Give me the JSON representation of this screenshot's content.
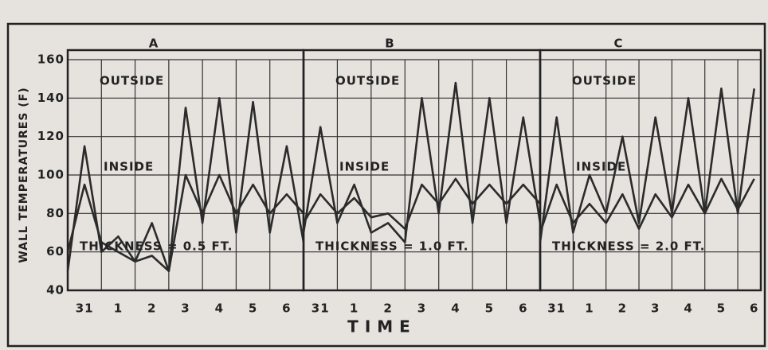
{
  "chart_data": [
    {
      "type": "line",
      "title": "A",
      "ylabel": "WALL TEMPERATURES (F)",
      "annotation": "THICKNESS = 0.5 FT.",
      "x": [
        -0.5,
        0,
        0.5,
        1,
        1.5,
        2,
        2.5,
        3,
        3.5,
        4,
        4.5,
        5,
        5.5,
        6,
        6.5
      ],
      "xlim": [
        -0.5,
        6.5
      ],
      "xticks": [
        {
          "value": 0,
          "label": "31"
        },
        1,
        2,
        3,
        4,
        5,
        6
      ],
      "ylim": [
        40,
        160
      ],
      "yticks": [
        40,
        60,
        80,
        100,
        120,
        140,
        160
      ],
      "grid": true,
      "series": [
        {
          "name": "OUTSIDE",
          "color": "#2b2b2b",
          "values": [
            50,
            115,
            60,
            68,
            55,
            75,
            50,
            135,
            75,
            140,
            70,
            138,
            70,
            115,
            65
          ]
        },
        {
          "name": "INSIDE",
          "color": "#2b2b2b",
          "values": [
            60,
            95,
            65,
            60,
            55,
            58,
            50,
            100,
            80,
            100,
            80,
            95,
            80,
            90,
            80
          ]
        }
      ]
    },
    {
      "type": "line",
      "title": "B",
      "xlabel": "TIME",
      "annotation": "THICKNESS = 1.0 FT.",
      "x": [
        -0.5,
        0,
        0.5,
        1,
        1.5,
        2,
        2.5,
        3,
        3.5,
        4,
        4.5,
        5,
        5.5,
        6,
        6.5
      ],
      "xlim": [
        -0.5,
        6.5
      ],
      "xticks": [
        {
          "value": 0,
          "label": "31"
        },
        1,
        2,
        3,
        4,
        5,
        6
      ],
      "ylim": [
        40,
        160
      ],
      "grid": true,
      "series": [
        {
          "name": "OUTSIDE",
          "color": "#2b2b2b",
          "values": [
            70,
            125,
            75,
            95,
            70,
            75,
            65,
            140,
            80,
            148,
            75,
            140,
            75,
            130,
            75
          ]
        },
        {
          "name": "INSIDE",
          "color": "#2b2b2b",
          "values": [
            75,
            90,
            80,
            88,
            78,
            80,
            72,
            95,
            85,
            98,
            85,
            95,
            85,
            95,
            85
          ]
        }
      ]
    },
    {
      "type": "line",
      "title": "C",
      "annotation": "THICKNESS = 2.0 FT.",
      "x": [
        -0.5,
        0,
        0.5,
        1,
        1.5,
        2,
        2.5,
        3,
        3.5,
        4,
        4.5,
        5,
        5.5,
        6
      ],
      "xlim": [
        -0.5,
        6.2
      ],
      "xticks": [
        {
          "value": 0,
          "label": "31"
        },
        1,
        2,
        3,
        4,
        5,
        6
      ],
      "ylim": [
        40,
        160
      ],
      "grid": true,
      "series": [
        {
          "name": "OUTSIDE",
          "color": "#2b2b2b",
          "values": [
            65,
            130,
            70,
            100,
            80,
            120,
            75,
            130,
            80,
            140,
            80,
            145,
            80,
            145
          ]
        },
        {
          "name": "INSIDE",
          "color": "#2b2b2b",
          "values": [
            70,
            95,
            75,
            85,
            75,
            90,
            72,
            90,
            78,
            95,
            80,
            98,
            82,
            98
          ]
        }
      ]
    }
  ]
}
